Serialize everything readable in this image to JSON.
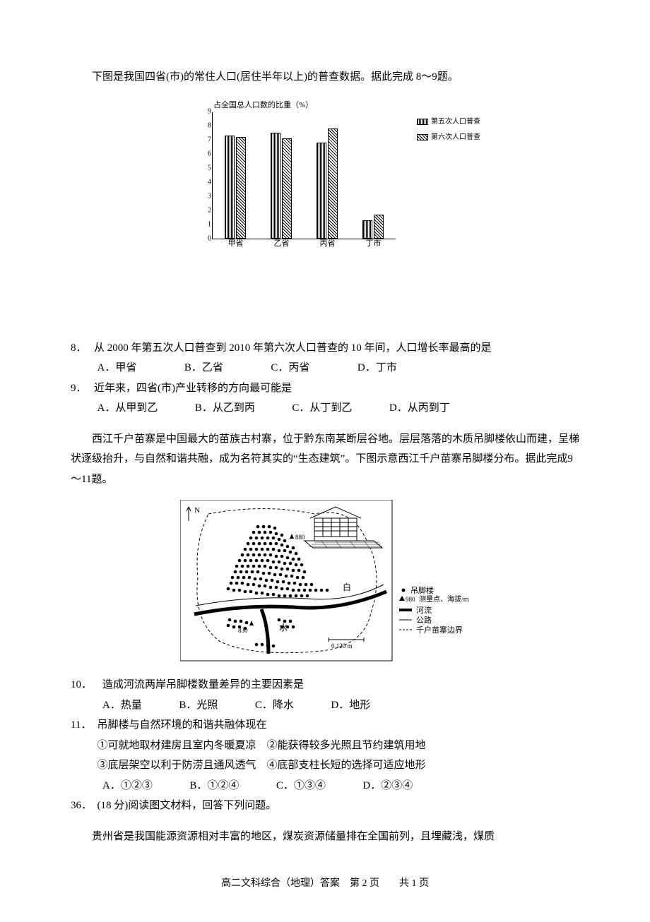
{
  "intro1": "下图是我国四省(市)的常住人口(居住半年以上)的普查数据。据此完成 8～9题。",
  "chart": {
    "ytitle": "占全国总人口数的比重（%）",
    "ymax": 9,
    "ytick_step": 1,
    "categories": [
      "甲省",
      "乙省",
      "丙省",
      "丁市"
    ],
    "series": [
      {
        "name": "第五次人口普查",
        "pattern": "v",
        "values": [
          7.3,
          7.5,
          6.8,
          1.3
        ]
      },
      {
        "name": "第六次人口普查",
        "pattern": "h",
        "values": [
          7.2,
          7.1,
          7.8,
          1.7
        ]
      }
    ],
    "colors": {
      "axis": "#000000",
      "bg": "#ffffff"
    }
  },
  "q8": {
    "num": "8．",
    "stem": "从 2000 年第五次人口普查到 2010 年第六次人口普查的 10 年间，人口增长率最高的是",
    "opts": [
      "A．甲省",
      "B．乙省",
      "C．丙省",
      "D．丁市"
    ]
  },
  "q9": {
    "num": "9．",
    "stem": "近年来，四省(市)产业转移的方向最可能是",
    "opts": [
      "A．从甲到乙",
      "B．从乙到丙",
      "C．从丁到乙",
      "D．从丙到丁"
    ]
  },
  "passage2": [
    "西江千户苗寨是中国最大的苗族古村寨，位于黔东南某断层谷地。层层落落的木质吊脚楼依山而建，呈梯状逐级抬升，与自然和谐共融，成为名符其实的“生态建筑”。下图示意西江千户苗寨吊脚楼分布。据此完成9～11题。"
  ],
  "figure2": {
    "legend": [
      "吊脚楼",
      "测量点、海拔/m",
      "河流",
      "公路",
      "千户苗寨边界"
    ],
    "labels": {
      "north": "N",
      "river": "白",
      "water": "水",
      "points": [
        "880",
        "830"
      ],
      "scale": "0  120 m"
    },
    "legend_prefix": [
      "●",
      "♦980",
      "━",
      "─",
      "┄"
    ]
  },
  "q10": {
    "num": "10．",
    "stem": "造成河流两岸吊脚楼数量差异的主要因素是",
    "opts": [
      "A．热量",
      "B．光照",
      "C．降水",
      "D．地形"
    ]
  },
  "q11": {
    "num": "11．",
    "stem": "吊脚楼与自然环境的和谐共融体现在",
    "stmts": [
      "①可就地取材建房且室内冬暖夏凉　②能获得较多光照且节约建筑用地",
      "③底层架空以利于防涝且通风透气　④底部支柱长短的选择可适应地形"
    ],
    "opts": [
      "A．①②③",
      "B．①②④",
      "C．①③④",
      "D．②③④"
    ]
  },
  "q36": {
    "num": "36．",
    "stem": "(18 分)阅读图文材料，回答下列问题。",
    "body": "贵州省是我国能源资源相对丰富的地区，煤炭资源储量排在全国前列，且埋藏浅，煤质"
  },
  "footer": "高二文科综合（地理）答案　第 2 页　　共 1 页"
}
